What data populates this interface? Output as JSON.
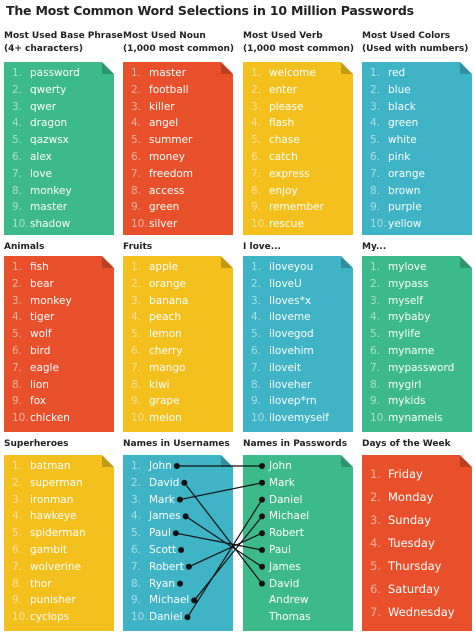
{
  "title": "The Most Common Word Selections in 10 Million Passwords",
  "panels": [
    {
      "heading": [
        "Most Used Base Phrase",
        "(4+ characters)"
      ],
      "color": "#3dba8b",
      "items": [
        [
          "1.",
          "password"
        ],
        [
          "2.",
          "qwerty"
        ],
        [
          "3.",
          "qwer"
        ],
        [
          "4.",
          "dragon"
        ],
        [
          "5.",
          "qazwsx"
        ],
        [
          "6.",
          "alex"
        ],
        [
          "7.",
          "love"
        ],
        [
          "8.",
          "monkey"
        ],
        [
          "9.",
          "master"
        ],
        [
          "10.",
          "shadow"
        ]
      ]
    },
    {
      "heading": [
        "Most Used Noun",
        "(1,000 most common)"
      ],
      "color": "#e8502c",
      "items": [
        [
          "1.",
          "master"
        ],
        [
          "2.",
          "football"
        ],
        [
          "3.",
          "killer"
        ],
        [
          "4.",
          "angel"
        ],
        [
          "5.",
          "summer"
        ],
        [
          "6.",
          "money"
        ],
        [
          "7.",
          "freedom"
        ],
        [
          "8.",
          "access"
        ],
        [
          "9.",
          "green"
        ],
        [
          "10.",
          "silver"
        ]
      ]
    },
    {
      "heading": [
        "Most Used Verb",
        "(1,000 most common)"
      ],
      "color": "#f4c01e",
      "items": [
        [
          "1.",
          "welcome"
        ],
        [
          "2.",
          "enter"
        ],
        [
          "3.",
          "please"
        ],
        [
          "4.",
          "flash"
        ],
        [
          "5.",
          "chase"
        ],
        [
          "6.",
          "catch"
        ],
        [
          "7.",
          "express"
        ],
        [
          "8.",
          "enjoy"
        ],
        [
          "9.",
          "remember"
        ],
        [
          "10.",
          "rescue"
        ]
      ]
    },
    {
      "heading": [
        "Most Used Colors",
        "(Used with numbers)"
      ],
      "color": "#3fb4c6",
      "items": [
        [
          "1.",
          "red"
        ],
        [
          "2.",
          "blue"
        ],
        [
          "3.",
          "black"
        ],
        [
          "4.",
          "green"
        ],
        [
          "5.",
          "white"
        ],
        [
          "6.",
          "pink"
        ],
        [
          "7.",
          "orange"
        ],
        [
          "8.",
          "brown"
        ],
        [
          "9.",
          "purple"
        ],
        [
          "10.",
          "yellow"
        ]
      ]
    },
    {
      "heading": [
        "Animals"
      ],
      "color": "#e8502c",
      "items": [
        [
          "1.",
          "fish"
        ],
        [
          "2.",
          "bear"
        ],
        [
          "3.",
          "monkey"
        ],
        [
          "4.",
          "tiger"
        ],
        [
          "5.",
          "wolf"
        ],
        [
          "6.",
          "bird"
        ],
        [
          "7.",
          "eagle"
        ],
        [
          "8.",
          "lion"
        ],
        [
          "9.",
          "fox"
        ],
        [
          "10.",
          "chicken"
        ]
      ]
    },
    {
      "heading": [
        "Fruits"
      ],
      "color": "#f4c01e",
      "items": [
        [
          "1.",
          "apple"
        ],
        [
          "2.",
          "orange"
        ],
        [
          "3.",
          "banana"
        ],
        [
          "4.",
          "peach"
        ],
        [
          "5.",
          "lemon"
        ],
        [
          "6.",
          "cherry"
        ],
        [
          "7.",
          "mango"
        ],
        [
          "8.",
          "kiwi"
        ],
        [
          "9.",
          "grape"
        ],
        [
          "10.",
          "melon"
        ]
      ]
    },
    {
      "heading": [
        "I love..."
      ],
      "color": "#3fb4c6",
      "items": [
        [
          "1.",
          "iloveyou"
        ],
        [
          "2.",
          "IloveU"
        ],
        [
          "3.",
          "Iloves*x"
        ],
        [
          "4.",
          "iloveme"
        ],
        [
          "5.",
          "ilovegod"
        ],
        [
          "6.",
          "ilovehim"
        ],
        [
          "7.",
          "iloveit"
        ],
        [
          "8.",
          "iloveher"
        ],
        [
          "9.",
          "ilovep*rn"
        ],
        [
          "10.",
          "ilovemyself"
        ]
      ]
    },
    {
      "heading": [
        "My..."
      ],
      "color": "#3dba8b",
      "items": [
        [
          "1.",
          "mylove"
        ],
        [
          "2.",
          "mypass"
        ],
        [
          "3.",
          "myself"
        ],
        [
          "4.",
          "mybaby"
        ],
        [
          "5.",
          "mylife"
        ],
        [
          "6.",
          "myname"
        ],
        [
          "7.",
          "mypassword"
        ],
        [
          "8.",
          "mygirl"
        ],
        [
          "9.",
          "mykids"
        ],
        [
          "10.",
          "mynameis"
        ]
      ]
    },
    {
      "heading": [
        "Superheroes"
      ],
      "color": "#f4c01e",
      "items": [
        [
          "1.",
          "batman"
        ],
        [
          "2.",
          "superman"
        ],
        [
          "3.",
          "ironman"
        ],
        [
          "4.",
          "hawkeye"
        ],
        [
          "5.",
          "spiderman"
        ],
        [
          "6.",
          "gambit"
        ],
        [
          "7.",
          "wolverine"
        ],
        [
          "8.",
          "thor"
        ],
        [
          "9.",
          "punisher"
        ],
        [
          "10.",
          "cyclops"
        ]
      ]
    },
    {
      "heading": [
        "Names in Usernames"
      ],
      "color": "#3fb4c6",
      "items": [
        [
          "1.",
          "John"
        ],
        [
          "2.",
          "David"
        ],
        [
          "3.",
          "Mark"
        ],
        [
          "4.",
          "James"
        ],
        [
          "5.",
          "Paul"
        ],
        [
          "6.",
          "Scott"
        ],
        [
          "7.",
          "Robert"
        ],
        [
          "8.",
          "Ryan"
        ],
        [
          "9.",
          "Michael"
        ],
        [
          "10.",
          "Daniel"
        ]
      ]
    },
    {
      "heading": [
        "Names in Passwords"
      ],
      "color": "#3dba8b",
      "items": [
        "John",
        "Mark",
        "Daniel",
        "Michael",
        "Robert",
        "Paul",
        "James",
        "David",
        "Andrew",
        "Thomas"
      ]
    },
    {
      "heading": [
        "Days of the Week"
      ],
      "color": "#e8502c",
      "items": [
        [
          "1.",
          "Friday"
        ],
        [
          "2.",
          "Monday"
        ],
        [
          "3.",
          "Sunday"
        ],
        [
          "4.",
          "Tuesday"
        ],
        [
          "5.",
          "Thursday"
        ],
        [
          "6.",
          "Saturday"
        ],
        [
          "7.",
          "Wednesday"
        ]
      ]
    }
  ]
}
